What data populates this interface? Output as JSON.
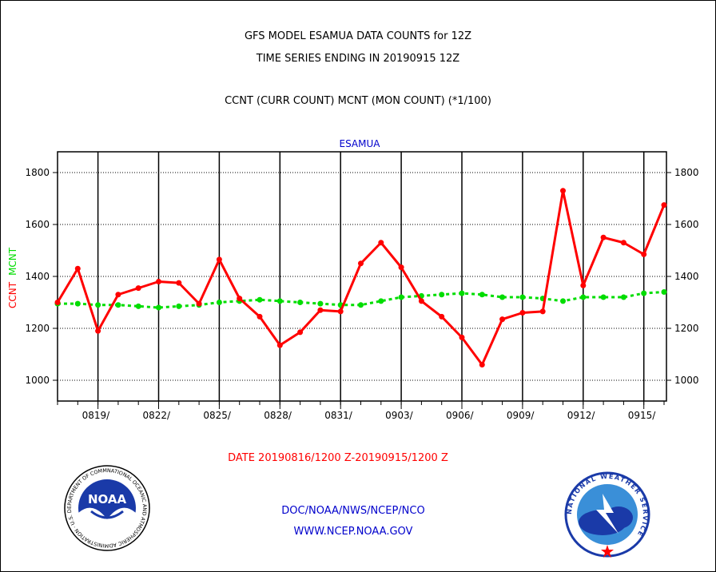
{
  "header": {
    "title_line1": "GFS MODEL ESAMUA DATA COUNTS for 12Z",
    "title_line2": "TIME SERIES ENDING IN 20190915 12Z",
    "subtitle": "CCNT (CURR COUNT) MCNT (MON COUNT) (*1/100)"
  },
  "footer": {
    "date_range": "DATE 20190816/1200 Z-20190915/1200 Z",
    "org": "DOC/NOAA/NWS/NCEP/NCO",
    "url": "WWW.NCEP.NOAA.GOV"
  },
  "logos": {
    "noaa_text": "NOAA",
    "noaa_ring_text": "NATIONAL OCEANIC AND ATMOSPHERIC ADMINISTRATION · U.S. DEPARTMENT OF COMMERCE",
    "nws_ring_text": "NATIONAL WEATHER SERVICE"
  },
  "colors": {
    "ccnt": "#ff0000",
    "mcnt": "#00dd00",
    "legend_text": "#0000cc",
    "axis": "#000000"
  },
  "chart_data": {
    "type": "line",
    "title": "ESAMUA",
    "ylabel_series": [
      {
        "text": "CCNT",
        "color": "#ff0000"
      },
      {
        "text": "MCNT",
        "color": "#00dd00"
      }
    ],
    "x_ticks": [
      "0819/",
      "0822/",
      "0825/",
      "0828/",
      "0831/",
      "0903/",
      "0906/",
      "0909/",
      "0912/",
      "0915/"
    ],
    "y_ticks": [
      1000,
      1200,
      1400,
      1600,
      1800
    ],
    "ylim": [
      920,
      1880
    ],
    "x_count": 31,
    "grid": true,
    "series": [
      {
        "name": "CCNT",
        "color": "#ff0000",
        "values": [
          1300,
          1430,
          1190,
          1330,
          1355,
          1380,
          1375,
          1295,
          1465,
          1315,
          1245,
          1135,
          1185,
          1270,
          1265,
          1450,
          1530,
          1435,
          1305,
          1245,
          1165,
          1060,
          1235,
          1260,
          1265,
          1730,
          1365,
          1550,
          1530,
          1485,
          1675
        ]
      },
      {
        "name": "MCNT",
        "color": "#00dd00",
        "values": [
          1295,
          1295,
          1290,
          1290,
          1285,
          1280,
          1285,
          1290,
          1300,
          1305,
          1310,
          1305,
          1300,
          1295,
          1290,
          1290,
          1305,
          1320,
          1325,
          1330,
          1335,
          1330,
          1320,
          1320,
          1315,
          1305,
          1320,
          1320,
          1320,
          1335,
          1340
        ]
      }
    ]
  }
}
